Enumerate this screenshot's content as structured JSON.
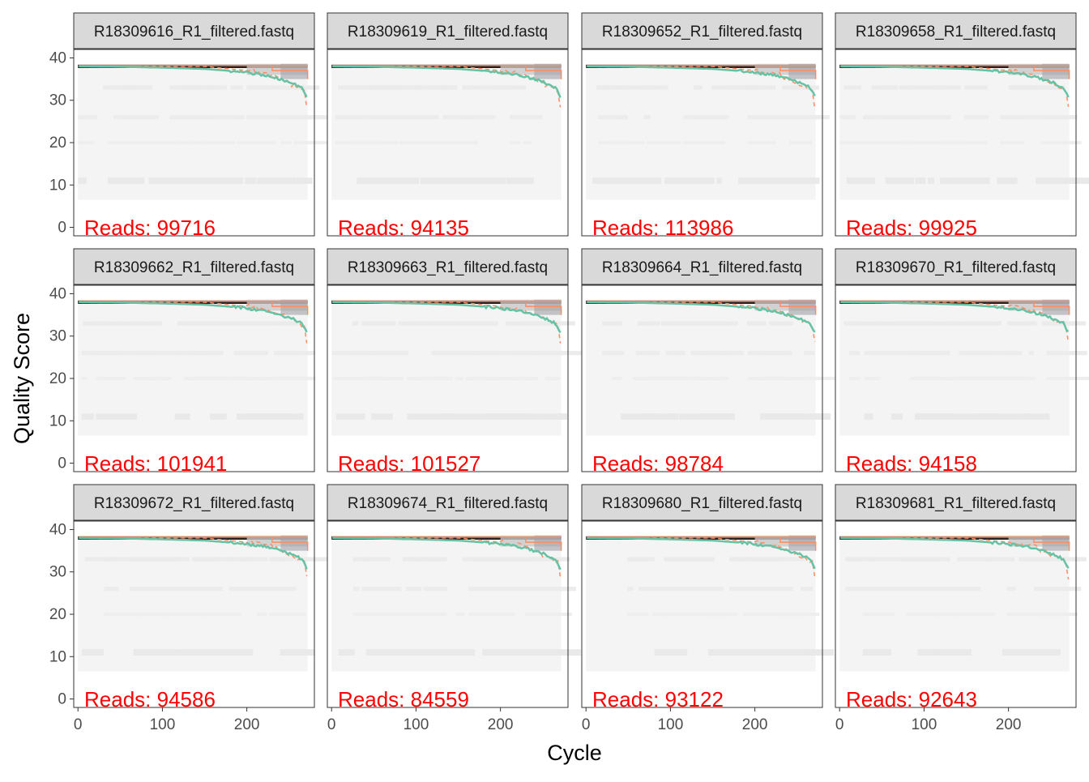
{
  "chart_data": {
    "type": "heatmap",
    "xlabel": "Cycle",
    "ylabel": "Quality Score",
    "xlim": [
      -5,
      280
    ],
    "ylim": [
      -2,
      42
    ],
    "x_ticks": [
      0,
      100,
      200
    ],
    "y_ticks": [
      0,
      10,
      20,
      30,
      40
    ],
    "grid": false,
    "legend": "none",
    "reads_label": "Reads:",
    "colors": {
      "mean_line": "#66c2a5",
      "quantile_lines": "#fc8d62",
      "reads_text": "#ff0000",
      "strip_fill": "#d9d9d9",
      "heat_max": "#000000"
    },
    "panels": [
      {
        "title": "R18309616_R1_filtered.fastq",
        "reads": "99716"
      },
      {
        "title": "R18309619_R1_filtered.fastq",
        "reads": "94135"
      },
      {
        "title": "R18309652_R1_filtered.fastq",
        "reads": "113986"
      },
      {
        "title": "R18309658_R1_filtered.fastq",
        "reads": "99925"
      },
      {
        "title": "R18309662_R1_filtered.fastq",
        "reads": "101941"
      },
      {
        "title": "R18309663_R1_filtered.fastq",
        "reads": "101527"
      },
      {
        "title": "R18309664_R1_filtered.fastq",
        "reads": "98784"
      },
      {
        "title": "R18309670_R1_filtered.fastq",
        "reads": "94158"
      },
      {
        "title": "R18309672_R1_filtered.fastq",
        "reads": "94586"
      },
      {
        "title": "R18309674_R1_filtered.fastq",
        "reads": "84559"
      },
      {
        "title": "R18309680_R1_filtered.fastq",
        "reads": "93122"
      },
      {
        "title": "R18309681_R1_filtered.fastq",
        "reads": "92643"
      }
    ],
    "mean_quality": {
      "x": [
        1,
        50,
        100,
        150,
        190,
        220,
        240,
        255,
        265,
        272
      ],
      "y": [
        38,
        37.9,
        37.7,
        37.4,
        36.8,
        36,
        35,
        34,
        33,
        30.5
      ]
    },
    "q25_quality": {
      "x": [
        1,
        150,
        200,
        230,
        250,
        262,
        270,
        272
      ],
      "y": [
        38,
        38,
        37,
        36,
        34,
        33,
        32,
        25
      ]
    }
  }
}
